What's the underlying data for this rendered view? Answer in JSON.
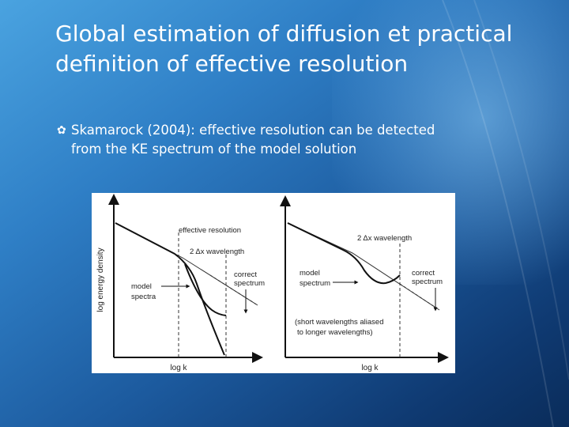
{
  "slide": {
    "title_line1": "Global estimation of diffusion et practical",
    "title_line2": "definition of effective resolution",
    "bullet_line1": "Skamarock (2004): effective resolution can be detected",
    "bullet_line2": "from the KE spectrum of the model solution",
    "bullet_icon": "bullet-icon"
  },
  "figure": {
    "ylabel": "log energy density",
    "left": {
      "effective_resolution": "effective resolution",
      "wavelength": "2 Δx wavelength",
      "model_line1": "model",
      "model_line2": "spectra",
      "correct_line1": "correct",
      "correct_line2": "spectrum",
      "xlabel": "log k"
    },
    "right": {
      "wavelength": "2 Δx wavelength",
      "model_line1": "model",
      "model_line2": "spectrum",
      "correct_line1": "correct",
      "correct_line2": "spectrum",
      "note_line1": "(short wavelengths aliased",
      "note_line2": "to longer wavelengths)",
      "xlabel": "log k"
    }
  },
  "colors": {
    "background_top": "#4aa3e0",
    "background_bottom": "#0a2c5a",
    "text": "#ffffff"
  }
}
